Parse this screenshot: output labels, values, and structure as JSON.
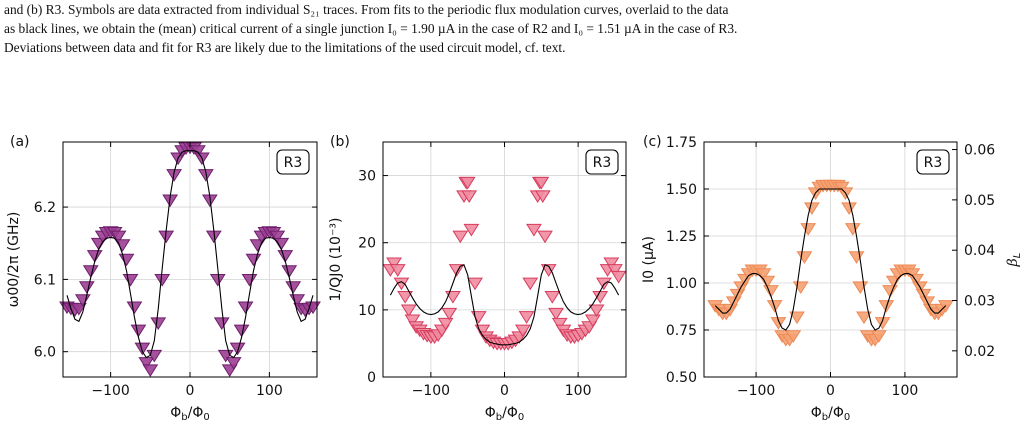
{
  "caption": {
    "lines": [
      "and (b) R3. Symbols are data extracted from individual S₂₁ traces. From fits to the periodic flux modulation curves, overlaid to the data",
      "as black lines, we obtain the (mean) critical current of a single junction I₀ = 1.90 µA in the case of R2 and I₀ = 1.51 µA in the case of R3.",
      "Deviations between data and fit for R3 are likely due to the limitations of the used circuit model, cf. text."
    ]
  },
  "chart_data": [
    {
      "type": "scatter",
      "panel_label": "(a)",
      "badge": "R3",
      "xlabel": "Φb/Φ0",
      "ylabel": "ω00/2π (GHz)",
      "xlim": [
        -160,
        160
      ],
      "ylim": [
        5.965,
        6.29
      ],
      "xticks": [
        -100,
        0,
        100
      ],
      "yticks": [
        6.0,
        6.1,
        6.2
      ],
      "ytick_labels": [
        "6.0",
        "6.1",
        "6.2"
      ],
      "grid": true,
      "marker": "triangle-down",
      "colors": {
        "marker_fill": "#9b3e94",
        "marker_edge": "#6e1f6a",
        "fit": "#000000"
      },
      "series": [
        {
          "x": [
            -155,
            -150,
            -145,
            -140,
            -135,
            -130,
            -125,
            -120,
            -115,
            -110,
            -105,
            -100,
            -95,
            -90,
            -85,
            -80,
            -75,
            -70,
            -65,
            -60,
            -55,
            -50,
            -45,
            -40,
            -35,
            -30,
            -25,
            -20,
            -15,
            -10,
            -5,
            0,
            5,
            10,
            15,
            20,
            25,
            30,
            35,
            40,
            45,
            50,
            55,
            60,
            65,
            70,
            75,
            80,
            85,
            90,
            95,
            100,
            105,
            110,
            115,
            120,
            125,
            130,
            135,
            140,
            145,
            150,
            155
          ],
          "y": [
            6.062,
            6.06,
            6.058,
            6.06,
            6.072,
            6.09,
            6.112,
            6.133,
            6.15,
            6.16,
            6.165,
            6.166,
            6.165,
            6.16,
            6.148,
            6.128,
            6.1,
            6.062,
            6.03,
            6.005,
            5.985,
            5.975,
            5.995,
            6.04,
            6.1,
            6.16,
            6.21,
            6.245,
            6.268,
            6.278,
            6.282,
            6.283,
            6.282,
            6.278,
            6.268,
            6.245,
            6.21,
            6.16,
            6.1,
            6.04,
            5.995,
            5.975,
            5.985,
            6.005,
            6.03,
            6.062,
            6.1,
            6.128,
            6.148,
            6.16,
            6.165,
            6.166,
            6.165,
            6.16,
            6.15,
            6.133,
            6.112,
            6.09,
            6.072,
            6.06,
            6.058,
            6.06,
            6.062
          ]
        }
      ],
      "fit": {
        "x": [
          -155,
          -150,
          -145,
          -140,
          -135,
          -130,
          -125,
          -120,
          -115,
          -110,
          -105,
          -100,
          -95,
          -90,
          -85,
          -80,
          -75,
          -70,
          -65,
          -60,
          -55,
          -50,
          -45,
          -40,
          -35,
          -30,
          -25,
          -20,
          -15,
          -10,
          -5,
          0,
          5,
          10,
          15,
          20,
          25,
          30,
          35,
          40,
          45,
          50,
          55,
          60,
          65,
          70,
          75,
          80,
          85,
          90,
          95,
          100,
          105,
          110,
          115,
          120,
          125,
          130,
          135,
          140,
          145,
          150,
          155
        ],
        "y": [
          6.078,
          6.06,
          6.045,
          6.042,
          6.055,
          6.078,
          6.103,
          6.125,
          6.142,
          6.152,
          6.157,
          6.158,
          6.157,
          6.15,
          6.135,
          6.112,
          6.08,
          6.048,
          6.02,
          6.0,
          5.992,
          5.995,
          6.015,
          6.06,
          6.115,
          6.168,
          6.215,
          6.248,
          6.268,
          6.276,
          6.278,
          6.278,
          6.278,
          6.276,
          6.268,
          6.248,
          6.215,
          6.168,
          6.115,
          6.06,
          6.015,
          5.995,
          5.992,
          6.0,
          6.02,
          6.048,
          6.08,
          6.112,
          6.135,
          6.15,
          6.157,
          6.158,
          6.157,
          6.152,
          6.142,
          6.125,
          6.103,
          6.078,
          6.055,
          6.042,
          6.045,
          6.06,
          6.078
        ]
      }
    },
    {
      "type": "scatter",
      "panel_label": "(b)",
      "badge": "R3",
      "xlabel": "Φb/Φ0",
      "ylabel": "1/QJ0 (10⁻³)",
      "xlim": [
        -165,
        165
      ],
      "ylim": [
        0,
        35
      ],
      "xticks": [
        -100,
        0,
        100
      ],
      "yticks": [
        0,
        10,
        20,
        30
      ],
      "ytick_labels": [
        "0",
        "10",
        "20",
        "30"
      ],
      "grid": true,
      "marker": "triangle-down",
      "colors": {
        "marker_fill": "#f08ca0",
        "marker_edge": "#d63c5e",
        "fit": "#000000"
      },
      "series": [
        {
          "x": [
            -155,
            -150,
            -145,
            -140,
            -135,
            -130,
            -125,
            -120,
            -115,
            -110,
            -105,
            -100,
            -95,
            -90,
            -85,
            -80,
            -75,
            -70,
            -65,
            -60,
            -55,
            -52,
            -50,
            -48,
            -45,
            -40,
            -35,
            -30,
            -25,
            -20,
            -15,
            -10,
            -5,
            0,
            5,
            10,
            15,
            20,
            25,
            30,
            35,
            40,
            45,
            48,
            50,
            52,
            55,
            60,
            65,
            70,
            75,
            80,
            85,
            90,
            95,
            100,
            105,
            110,
            115,
            120,
            125,
            130,
            135,
            140,
            145,
            150,
            155
          ],
          "y": [
            16,
            17,
            16,
            14,
            12,
            10,
            8.5,
            7.5,
            7,
            6.5,
            6.2,
            6.0,
            6.0,
            6.3,
            7,
            8,
            9.5,
            12,
            16,
            21,
            27,
            29,
            29,
            27,
            22,
            14,
            9,
            7,
            6,
            5.5,
            5.2,
            5,
            5,
            5,
            5,
            5.2,
            5.5,
            6,
            7,
            9,
            14,
            22,
            27,
            29,
            29,
            27,
            21,
            16,
            12,
            9.5,
            8,
            7,
            6.3,
            6.0,
            6.0,
            6.2,
            6.5,
            7,
            7.5,
            8.5,
            10,
            12,
            14,
            16,
            17,
            16,
            15
          ]
        }
      ],
      "fit": {
        "x": [
          -155,
          -150,
          -145,
          -140,
          -135,
          -130,
          -125,
          -120,
          -115,
          -110,
          -105,
          -100,
          -95,
          -90,
          -85,
          -80,
          -75,
          -70,
          -65,
          -60,
          -55,
          -50,
          -45,
          -40,
          -35,
          -30,
          -25,
          -20,
          -15,
          -10,
          -5,
          0,
          5,
          10,
          15,
          20,
          25,
          30,
          35,
          40,
          45,
          50,
          55,
          60,
          65,
          70,
          75,
          80,
          85,
          90,
          95,
          100,
          105,
          110,
          115,
          120,
          125,
          130,
          135,
          140,
          145,
          150,
          155
        ],
        "y": [
          12.2,
          13.2,
          14.0,
          14.2,
          13.8,
          12.8,
          11.8,
          10.9,
          10.2,
          9.7,
          9.4,
          9.3,
          9.4,
          9.7,
          10.3,
          11.2,
          12.5,
          14.0,
          15.5,
          16.5,
          16.7,
          15.2,
          12.0,
          9.0,
          7.2,
          6.2,
          5.6,
          5.2,
          5.0,
          4.9,
          4.8,
          4.8,
          4.8,
          4.9,
          5.0,
          5.2,
          5.6,
          6.2,
          7.2,
          9.0,
          12.0,
          15.2,
          16.7,
          16.5,
          15.5,
          14.0,
          12.5,
          11.2,
          10.3,
          9.7,
          9.4,
          9.3,
          9.4,
          9.7,
          10.2,
          10.9,
          11.8,
          12.8,
          13.8,
          14.2,
          14.0,
          13.2,
          12.2
        ]
      }
    },
    {
      "type": "scatter",
      "panel_label": "(c)",
      "badge": "R3",
      "xlabel": "Φb/Φ0",
      "ylabel": "I0 (µA)",
      "ylabel_right": "βL",
      "xlim": [
        -170,
        170
      ],
      "ylim": [
        0.5,
        1.75
      ],
      "ylim_right": [
        0.0148,
        0.0615
      ],
      "xticks": [
        -100,
        0,
        100
      ],
      "yticks": [
        0.5,
        0.75,
        1.0,
        1.25,
        1.5,
        1.75
      ],
      "ytick_labels": [
        "0.50",
        "0.75",
        "1.00",
        "1.25",
        "1.50",
        "1.75"
      ],
      "yticks_right": [
        0.02,
        0.03,
        0.04,
        0.05,
        0.06
      ],
      "ytick_labels_right": [
        "0.02",
        "0.03",
        "0.04",
        "0.05",
        "0.06"
      ],
      "grid": true,
      "marker": "triangle-down",
      "colors": {
        "marker_fill": "#f5a172",
        "marker_edge": "#ee8a56",
        "fit": "#000000"
      },
      "series": [
        {
          "x": [
            -155,
            -150,
            -145,
            -140,
            -135,
            -130,
            -125,
            -120,
            -115,
            -110,
            -105,
            -100,
            -95,
            -90,
            -85,
            -80,
            -75,
            -70,
            -65,
            -60,
            -55,
            -50,
            -45,
            -40,
            -35,
            -30,
            -25,
            -20,
            -15,
            -10,
            -5,
            0,
            5,
            10,
            15,
            20,
            25,
            30,
            35,
            40,
            45,
            50,
            55,
            60,
            65,
            70,
            75,
            80,
            85,
            90,
            95,
            100,
            105,
            110,
            115,
            120,
            125,
            130,
            135,
            140,
            145,
            150,
            155
          ],
          "y": [
            0.88,
            0.86,
            0.84,
            0.84,
            0.86,
            0.9,
            0.94,
            0.98,
            1.02,
            1.05,
            1.07,
            1.07,
            1.07,
            1.05,
            1.01,
            0.96,
            0.88,
            0.79,
            0.72,
            0.7,
            0.7,
            0.72,
            0.82,
            0.98,
            1.14,
            1.29,
            1.4,
            1.48,
            1.51,
            1.52,
            1.52,
            1.52,
            1.52,
            1.52,
            1.51,
            1.48,
            1.4,
            1.29,
            1.14,
            0.98,
            0.82,
            0.72,
            0.7,
            0.7,
            0.72,
            0.79,
            0.88,
            0.96,
            1.01,
            1.05,
            1.07,
            1.07,
            1.07,
            1.05,
            1.02,
            0.98,
            0.94,
            0.9,
            0.86,
            0.84,
            0.84,
            0.86,
            0.88
          ]
        }
      ],
      "fit": {
        "x": [
          -155,
          -150,
          -145,
          -140,
          -135,
          -130,
          -125,
          -120,
          -115,
          -110,
          -105,
          -100,
          -95,
          -90,
          -85,
          -80,
          -75,
          -70,
          -65,
          -60,
          -55,
          -50,
          -45,
          -40,
          -35,
          -30,
          -25,
          -20,
          -15,
          -10,
          -5,
          0,
          5,
          10,
          15,
          20,
          25,
          30,
          35,
          40,
          45,
          50,
          55,
          60,
          65,
          70,
          75,
          80,
          85,
          90,
          95,
          100,
          105,
          110,
          115,
          120,
          125,
          130,
          135,
          140,
          145,
          150,
          155
        ],
        "y": [
          0.88,
          0.86,
          0.84,
          0.84,
          0.86,
          0.9,
          0.94,
          0.98,
          1.01,
          1.04,
          1.05,
          1.05,
          1.04,
          1.02,
          0.98,
          0.93,
          0.87,
          0.8,
          0.76,
          0.75,
          0.78,
          0.86,
          0.98,
          1.12,
          1.25,
          1.36,
          1.44,
          1.48,
          1.5,
          1.5,
          1.5,
          1.5,
          1.5,
          1.5,
          1.5,
          1.48,
          1.44,
          1.36,
          1.25,
          1.12,
          0.98,
          0.86,
          0.78,
          0.75,
          0.76,
          0.8,
          0.87,
          0.93,
          0.98,
          1.02,
          1.04,
          1.05,
          1.05,
          1.04,
          1.01,
          0.98,
          0.94,
          0.9,
          0.86,
          0.84,
          0.84,
          0.86,
          0.88
        ]
      }
    }
  ]
}
